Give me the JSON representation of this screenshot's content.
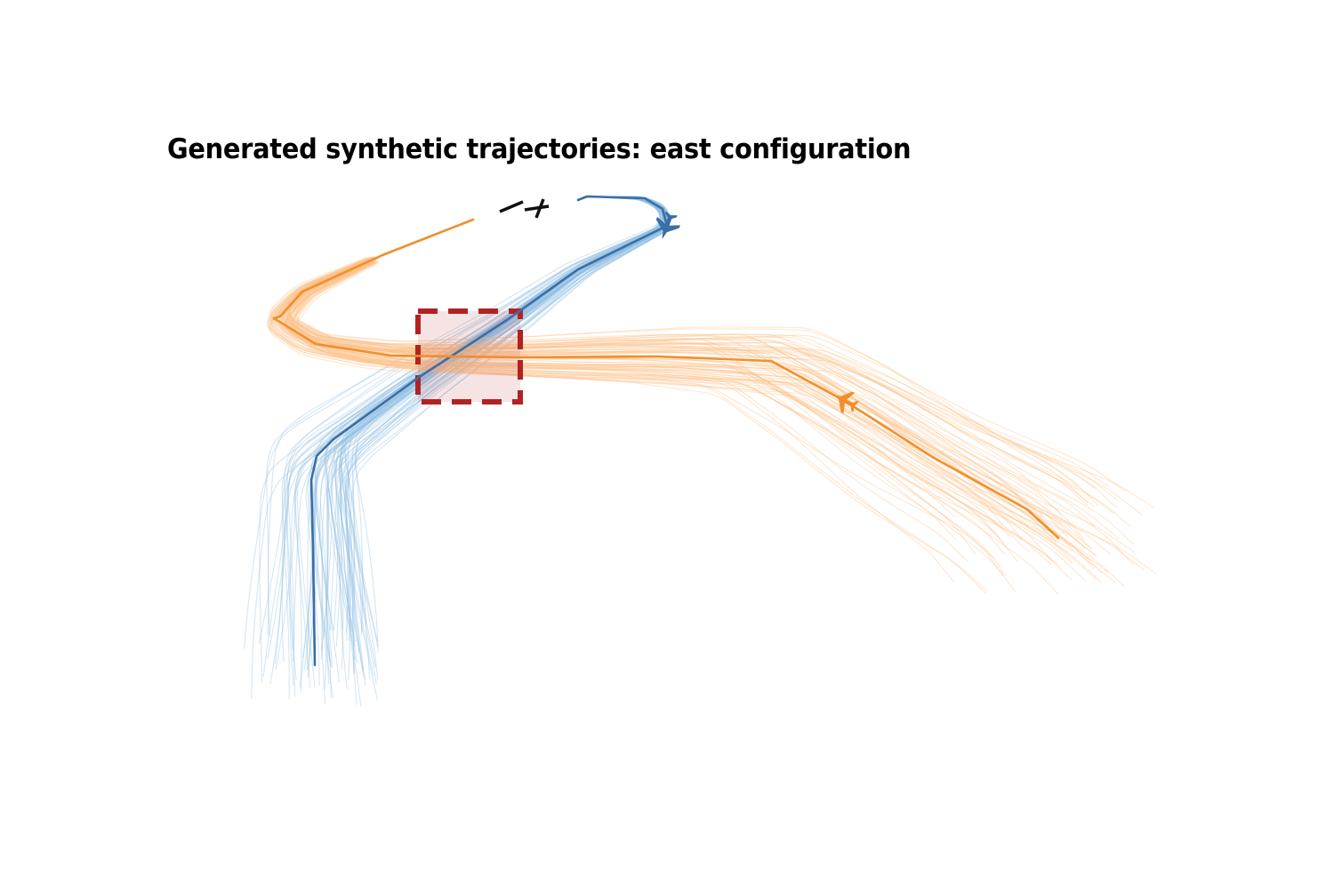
{
  "chart_data": {
    "type": "line",
    "title": "Generated synthetic trajectories: east configuration",
    "xlabel": "",
    "ylabel": "",
    "axes_visible": false,
    "grid": false,
    "legend": "none",
    "xlim": [
      0,
      150
    ],
    "ylim": [
      0,
      100
    ],
    "series": [
      {
        "role": "departure",
        "color": "#3a6ea5",
        "sample_color": "#8fbde3",
        "sample_count": 80,
        "heading_marker": "airplane-icon",
        "reference": [
          [
            35.4,
            25.2
          ],
          [
            35.2,
            38
          ],
          [
            35,
            46
          ],
          [
            35.6,
            48.7
          ],
          [
            37.5,
            50.6
          ],
          [
            47,
            57.5
          ],
          [
            57,
            64
          ],
          [
            65,
            69.7
          ],
          [
            75,
            74.6
          ],
          [
            74.5,
            76.5
          ],
          [
            72.5,
            77.7
          ],
          [
            66,
            77.9
          ],
          [
            65,
            77.5
          ]
        ]
      },
      {
        "role": "arrival",
        "color": "#f28e2b",
        "sample_color": "#fdbf85",
        "sample_count": 80,
        "heading_marker": "airplane-icon",
        "reference": [
          [
            53.2,
            75.3
          ],
          [
            43,
            71.3
          ],
          [
            34,
            67.2
          ],
          [
            31.5,
            64.4
          ],
          [
            30.8,
            64.2
          ],
          [
            35.5,
            61.3
          ],
          [
            44,
            60
          ],
          [
            58,
            59.8
          ],
          [
            74,
            59.9
          ],
          [
            86.7,
            59.4
          ],
          [
            95,
            54.9
          ],
          [
            105,
            48.5
          ],
          [
            115.5,
            42.7
          ],
          [
            119,
            39.5
          ]
        ]
      }
    ],
    "highlight_region": {
      "x": [
        47,
        58.5
      ],
      "y": [
        54.8,
        65
      ],
      "style": "dashed",
      "color": "#b22222"
    },
    "runway": {
      "segments": [
        [
          [
            56.2,
            76.2
          ],
          [
            58.8,
            77.3
          ]
        ],
        [
          [
            59,
            76.4
          ],
          [
            61.7,
            76.8
          ]
        ],
        [
          [
            60.3,
            75.5
          ],
          [
            61.1,
            77.6
          ]
        ]
      ],
      "color": "#111111"
    }
  }
}
